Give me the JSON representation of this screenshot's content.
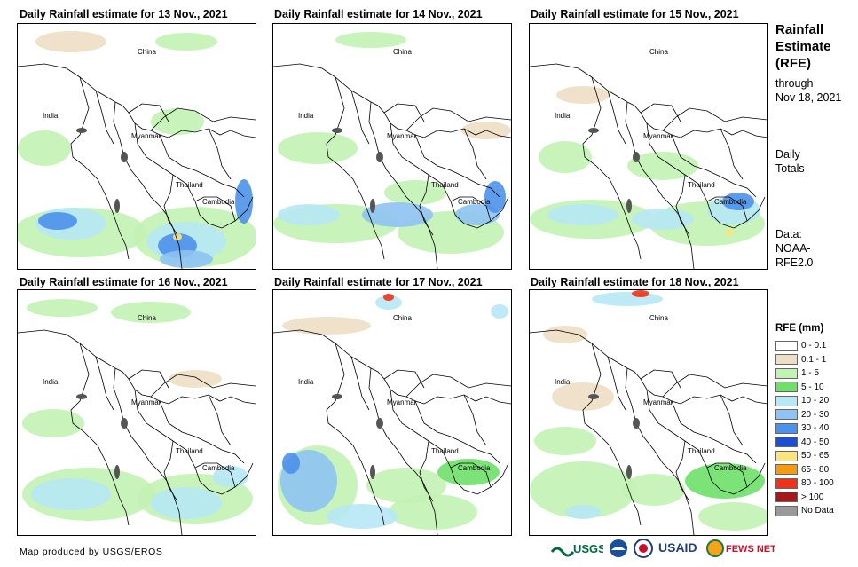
{
  "panels": [
    {
      "title": "Daily Rainfall estimate for 13 Nov., 2021"
    },
    {
      "title": "Daily Rainfall estimate for 14 Nov., 2021"
    },
    {
      "title": "Daily Rainfall estimate for 15 Nov., 2021"
    },
    {
      "title": "Daily Rainfall estimate for 16 Nov., 2021"
    },
    {
      "title": "Daily Rainfall estimate for 17 Nov., 2021"
    },
    {
      "title": "Daily Rainfall estimate for 18 Nov., 2021"
    }
  ],
  "map_labels": {
    "china": "China",
    "india": "India",
    "myanmar": "Myanmar",
    "thailand": "Thailand",
    "cambodia": "Cambodia"
  },
  "side": {
    "title_lines": [
      "Rainfall",
      "Estimate",
      "(RFE)"
    ],
    "through_lines": [
      "through",
      "Nov 18, 2021"
    ],
    "daily_lines": [
      "Daily",
      "Totals"
    ],
    "data_lines": [
      "Data:",
      "NOAA-",
      "RFE2.0"
    ]
  },
  "legend": {
    "title": "RFE (mm)",
    "items": [
      {
        "label": "0 - 0.1",
        "color": "#ffffff"
      },
      {
        "label": "0.1 - 1",
        "color": "#eedfc4"
      },
      {
        "label": "1 - 5",
        "color": "#c2f2b4"
      },
      {
        "label": "5 - 10",
        "color": "#6ee06a"
      },
      {
        "label": "10 - 20",
        "color": "#b6e8f5"
      },
      {
        "label": "20 - 30",
        "color": "#8ec3f2"
      },
      {
        "label": "30 - 40",
        "color": "#4c91ea"
      },
      {
        "label": "40 - 50",
        "color": "#1c4fd6"
      },
      {
        "label": "50 - 65",
        "color": "#f9e47e"
      },
      {
        "label": "65 - 80",
        "color": "#f59a12"
      },
      {
        "label": "80 - 100",
        "color": "#f0321a"
      },
      {
        "label": "> 100",
        "color": "#a8181a"
      },
      {
        "label": "No Data",
        "color": "#999999"
      }
    ]
  },
  "credit": "Map produced by USGS/EROS",
  "logos": {
    "usgs": "USGS",
    "usaid": "USAID",
    "fewsnet": "FEWS NET"
  }
}
